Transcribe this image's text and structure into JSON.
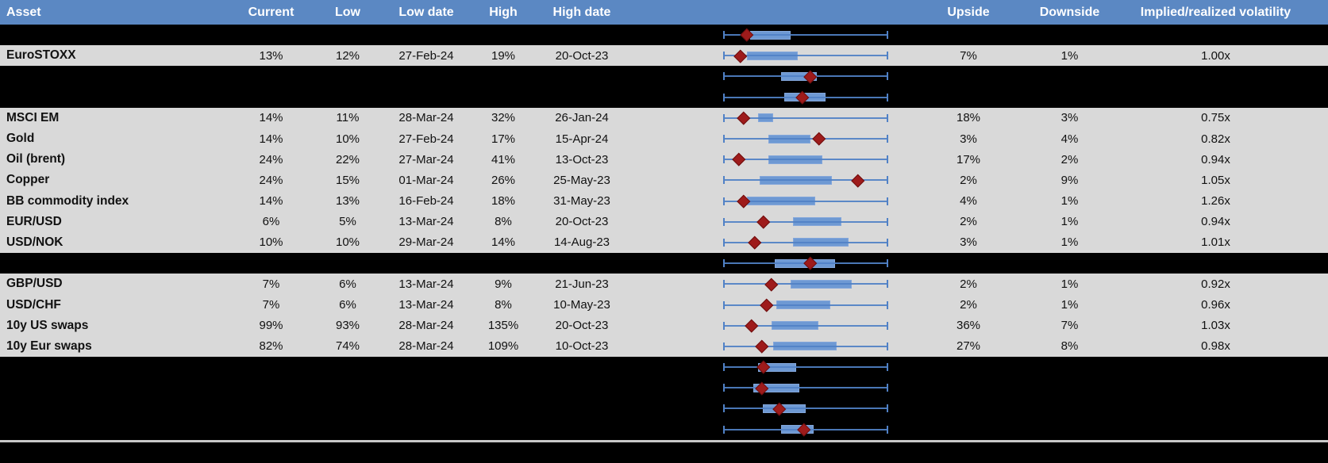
{
  "colors": {
    "header_bg": "#5B88C3",
    "row_gray": "#D9D9D9",
    "row_black": "#000000",
    "box_fill": "#6E99D3",
    "whisker_blue": "#5081C6",
    "marker_red": "#9E1B1B"
  },
  "header": {
    "columns": [
      "Asset",
      "Current",
      "Low",
      "Low date",
      "High",
      "High date",
      "Upside",
      "Downside",
      "Implied/realized volatility"
    ]
  },
  "rows": [
    {
      "bg": "black",
      "asset": "",
      "current": "",
      "low": "",
      "low_date": "",
      "high": "",
      "high_date": "",
      "upside": "",
      "downside": "",
      "ivrv": ""
    },
    {
      "bg": "gray",
      "asset": "EuroSTOXX",
      "current": "13%",
      "low": "12%",
      "low_date": "27-Feb-24",
      "high": "19%",
      "high_date": "20-Oct-23",
      "upside": "7%",
      "downside": "1%",
      "ivrv": "1.00x"
    },
    {
      "bg": "black",
      "asset": "",
      "current": "",
      "low": "",
      "low_date": "",
      "high": "",
      "high_date": "",
      "upside": "",
      "downside": "",
      "ivrv": ""
    },
    {
      "bg": "black",
      "asset": "",
      "current": "",
      "low": "",
      "low_date": "",
      "high": "",
      "high_date": "",
      "upside": "",
      "downside": "",
      "ivrv": ""
    },
    {
      "bg": "gray",
      "asset": "MSCI EM",
      "current": "14%",
      "low": "11%",
      "low_date": "28-Mar-24",
      "high": "32%",
      "high_date": "26-Jan-24",
      "upside": "18%",
      "downside": "3%",
      "ivrv": "0.75x"
    },
    {
      "bg": "gray",
      "asset": "Gold",
      "current": "14%",
      "low": "10%",
      "low_date": "27-Feb-24",
      "high": "17%",
      "high_date": "15-Apr-24",
      "upside": "3%",
      "downside": "4%",
      "ivrv": "0.82x"
    },
    {
      "bg": "gray",
      "asset": "Oil (brent)",
      "current": "24%",
      "low": "22%",
      "low_date": "27-Mar-24",
      "high": "41%",
      "high_date": "13-Oct-23",
      "upside": "17%",
      "downside": "2%",
      "ivrv": "0.94x"
    },
    {
      "bg": "gray",
      "asset": "Copper",
      "current": "24%",
      "low": "15%",
      "low_date": "01-Mar-24",
      "high": "26%",
      "high_date": "25-May-23",
      "upside": "2%",
      "downside": "9%",
      "ivrv": "1.05x"
    },
    {
      "bg": "gray",
      "asset": "BB commodity index",
      "current": "14%",
      "low": "13%",
      "low_date": "16-Feb-24",
      "high": "18%",
      "high_date": "31-May-23",
      "upside": "4%",
      "downside": "1%",
      "ivrv": "1.26x"
    },
    {
      "bg": "gray",
      "asset": "EUR/USD",
      "current": "6%",
      "low": "5%",
      "low_date": "13-Mar-24",
      "high": "8%",
      "high_date": "20-Oct-23",
      "upside": "2%",
      "downside": "1%",
      "ivrv": "0.94x"
    },
    {
      "bg": "gray",
      "asset": "USD/NOK",
      "current": "10%",
      "low": "10%",
      "low_date": "29-Mar-24",
      "high": "14%",
      "high_date": "14-Aug-23",
      "upside": "3%",
      "downside": "1%",
      "ivrv": "1.01x"
    },
    {
      "bg": "black",
      "asset": "",
      "current": "",
      "low": "",
      "low_date": "",
      "high": "",
      "high_date": "",
      "upside": "",
      "downside": "",
      "ivrv": ""
    },
    {
      "bg": "gray",
      "asset": "GBP/USD",
      "current": "7%",
      "low": "6%",
      "low_date": "13-Mar-24",
      "high": "9%",
      "high_date": "21-Jun-23",
      "upside": "2%",
      "downside": "1%",
      "ivrv": "0.92x"
    },
    {
      "bg": "gray",
      "asset": "USD/CHF",
      "current": "7%",
      "low": "6%",
      "low_date": "13-Mar-24",
      "high": "8%",
      "high_date": "10-May-23",
      "upside": "2%",
      "downside": "1%",
      "ivrv": "0.96x"
    },
    {
      "bg": "gray",
      "asset": "10y US swaps",
      "current": "99%",
      "low": "93%",
      "low_date": "28-Mar-24",
      "high": "135%",
      "high_date": "20-Oct-23",
      "upside": "36%",
      "downside": "7%",
      "ivrv": "1.03x"
    },
    {
      "bg": "gray",
      "asset": "10y Eur swaps",
      "current": "82%",
      "low": "74%",
      "low_date": "28-Mar-24",
      "high": "109%",
      "high_date": "10-Oct-23",
      "upside": "27%",
      "downside": "8%",
      "ivrv": "0.98x"
    },
    {
      "bg": "black",
      "asset": "",
      "current": "",
      "low": "",
      "low_date": "",
      "high": "",
      "high_date": "",
      "upside": "",
      "downside": "",
      "ivrv": ""
    },
    {
      "bg": "black",
      "asset": "",
      "current": "",
      "low": "",
      "low_date": "",
      "high": "",
      "high_date": "",
      "upside": "",
      "downside": "",
      "ivrv": ""
    },
    {
      "bg": "black",
      "asset": "",
      "current": "",
      "low": "",
      "low_date": "",
      "high": "",
      "high_date": "",
      "upside": "",
      "downside": "",
      "ivrv": ""
    },
    {
      "bg": "black",
      "asset": "",
      "current": "",
      "low": "",
      "low_date": "",
      "high": "",
      "high_date": "",
      "upside": "",
      "downside": "",
      "ivrv": ""
    }
  ],
  "chart_data": {
    "type": "boxplot",
    "orientation": "horizontal",
    "note": "One box-and-whisker per table row; positions normalized 0-1 across the shared whisker span (all whiskers run the full span). Red diamond = current level.",
    "xlim": [
      0,
      1
    ],
    "series": [
      {
        "row": 0,
        "label": "",
        "whisker_lo": 0,
        "whisker_hi": 1,
        "box_lo": 0.16,
        "box_hi": 0.41,
        "marker": 0.14
      },
      {
        "row": 1,
        "label": "EuroSTOXX",
        "whisker_lo": 0,
        "whisker_hi": 1,
        "box_lo": 0.14,
        "box_hi": 0.45,
        "marker": 0.1
      },
      {
        "row": 2,
        "label": "",
        "whisker_lo": 0,
        "whisker_hi": 1,
        "box_lo": 0.35,
        "box_hi": 0.57,
        "marker": 0.53
      },
      {
        "row": 3,
        "label": "",
        "whisker_lo": 0,
        "whisker_hi": 1,
        "box_lo": 0.37,
        "box_hi": 0.62,
        "marker": 0.48
      },
      {
        "row": 4,
        "label": "MSCI EM",
        "whisker_lo": 0,
        "whisker_hi": 1,
        "box_lo": 0.21,
        "box_hi": 0.3,
        "marker": 0.12
      },
      {
        "row": 5,
        "label": "Gold",
        "whisker_lo": 0,
        "whisker_hi": 1,
        "box_lo": 0.27,
        "box_hi": 0.53,
        "marker": 0.58
      },
      {
        "row": 6,
        "label": "Oil (brent)",
        "whisker_lo": 0,
        "whisker_hi": 1,
        "box_lo": 0.27,
        "box_hi": 0.6,
        "marker": 0.09
      },
      {
        "row": 7,
        "label": "Copper",
        "whisker_lo": 0,
        "whisker_hi": 1,
        "box_lo": 0.22,
        "box_hi": 0.66,
        "marker": 0.82
      },
      {
        "row": 8,
        "label": "BB commodity index",
        "whisker_lo": 0,
        "whisker_hi": 1,
        "box_lo": 0.14,
        "box_hi": 0.56,
        "marker": 0.12
      },
      {
        "row": 9,
        "label": "EUR/USD",
        "whisker_lo": 0,
        "whisker_hi": 1,
        "box_lo": 0.42,
        "box_hi": 0.72,
        "marker": 0.24
      },
      {
        "row": 10,
        "label": "USD/NOK",
        "whisker_lo": 0,
        "whisker_hi": 1,
        "box_lo": 0.42,
        "box_hi": 0.76,
        "marker": 0.19
      },
      {
        "row": 11,
        "label": "",
        "whisker_lo": 0,
        "whisker_hi": 1,
        "box_lo": 0.31,
        "box_hi": 0.68,
        "marker": 0.53
      },
      {
        "row": 12,
        "label": "GBP/USD",
        "whisker_lo": 0,
        "whisker_hi": 1,
        "box_lo": 0.41,
        "box_hi": 0.78,
        "marker": 0.29
      },
      {
        "row": 13,
        "label": "USD/CHF",
        "whisker_lo": 0,
        "whisker_hi": 1,
        "box_lo": 0.32,
        "box_hi": 0.65,
        "marker": 0.26
      },
      {
        "row": 14,
        "label": "10y US swaps",
        "whisker_lo": 0,
        "whisker_hi": 1,
        "box_lo": 0.29,
        "box_hi": 0.58,
        "marker": 0.17
      },
      {
        "row": 15,
        "label": "10y Eur swaps",
        "whisker_lo": 0,
        "whisker_hi": 1,
        "box_lo": 0.3,
        "box_hi": 0.69,
        "marker": 0.23
      },
      {
        "row": 16,
        "label": "",
        "whisker_lo": 0,
        "whisker_hi": 1,
        "box_lo": 0.21,
        "box_hi": 0.44,
        "marker": 0.24
      },
      {
        "row": 17,
        "label": "",
        "whisker_lo": 0,
        "whisker_hi": 1,
        "box_lo": 0.18,
        "box_hi": 0.46,
        "marker": 0.23
      },
      {
        "row": 18,
        "label": "",
        "whisker_lo": 0,
        "whisker_hi": 1,
        "box_lo": 0.24,
        "box_hi": 0.5,
        "marker": 0.34
      },
      {
        "row": 19,
        "label": "",
        "whisker_lo": 0,
        "whisker_hi": 1,
        "box_lo": 0.35,
        "box_hi": 0.55,
        "marker": 0.49
      }
    ]
  }
}
